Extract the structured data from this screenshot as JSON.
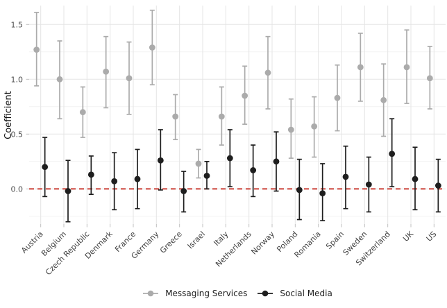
{
  "figure": {
    "background": "#ffffff",
    "grid_major_color": "#e5e5e5",
    "grid_minor_color": "#f2f2f2",
    "tick_color": "#bfbfbf",
    "tick_label_color": "#4d4d4d",
    "x_label_color": "#404040"
  },
  "chart_data": {
    "type": "scatter",
    "subtype": "dot-and-whisker coefficient plot",
    "title": "",
    "xlabel": "",
    "ylabel": "Coefficient",
    "ylim": [
      -0.32,
      1.68
    ],
    "y_ticks": [
      0.0,
      0.5,
      1.0,
      1.5
    ],
    "y_tick_labels": [
      "0.0",
      "0.5",
      "1.0",
      "1.5"
    ],
    "y_minor_ticks": [
      -0.25,
      0.25,
      0.75,
      1.25
    ],
    "grid": true,
    "legend_position": "bottom",
    "reference_line": {
      "y": 0.0,
      "color": "#c8352a",
      "style": "dashed"
    },
    "categories": [
      "Austria",
      "Belgium",
      "Czech Republic",
      "Denmark",
      "France",
      "Germany",
      "Greece",
      "Israel",
      "Italy",
      "Netherlands",
      "Norway",
      "Poland",
      "Romania",
      "Spain",
      "Sweden",
      "Switzerland",
      "UK",
      "US"
    ],
    "series": [
      {
        "name": "Messaging Services",
        "color": "#ababab",
        "values": [
          1.27,
          1.0,
          0.7,
          1.07,
          1.01,
          1.29,
          0.66,
          0.23,
          0.66,
          0.85,
          1.06,
          0.54,
          0.57,
          0.83,
          1.11,
          0.81,
          1.11,
          1.01
        ],
        "ci_low": [
          0.94,
          0.64,
          0.47,
          0.74,
          0.68,
          0.95,
          0.45,
          0.1,
          0.4,
          0.59,
          0.73,
          0.28,
          0.29,
          0.53,
          0.8,
          0.48,
          0.78,
          0.73
        ],
        "ci_high": [
          1.61,
          1.35,
          0.93,
          1.39,
          1.34,
          1.63,
          0.86,
          0.36,
          0.93,
          1.12,
          1.39,
          0.82,
          0.84,
          1.13,
          1.42,
          1.14,
          1.45,
          1.3
        ]
      },
      {
        "name": "Social Media",
        "color": "#1e1e1e",
        "values": [
          0.2,
          -0.02,
          0.13,
          0.07,
          0.09,
          0.26,
          -0.02,
          0.12,
          0.28,
          0.17,
          0.25,
          -0.01,
          -0.04,
          0.11,
          0.04,
          0.32,
          0.09,
          0.03
        ],
        "ci_low": [
          -0.07,
          -0.3,
          -0.05,
          -0.19,
          -0.18,
          -0.01,
          -0.21,
          0.0,
          0.02,
          -0.07,
          -0.02,
          -0.28,
          -0.29,
          -0.18,
          -0.21,
          0.02,
          -0.19,
          -0.21
        ],
        "ci_high": [
          0.47,
          0.26,
          0.3,
          0.33,
          0.36,
          0.54,
          0.16,
          0.25,
          0.54,
          0.4,
          0.52,
          0.27,
          0.23,
          0.39,
          0.29,
          0.64,
          0.38,
          0.27
        ]
      }
    ]
  }
}
